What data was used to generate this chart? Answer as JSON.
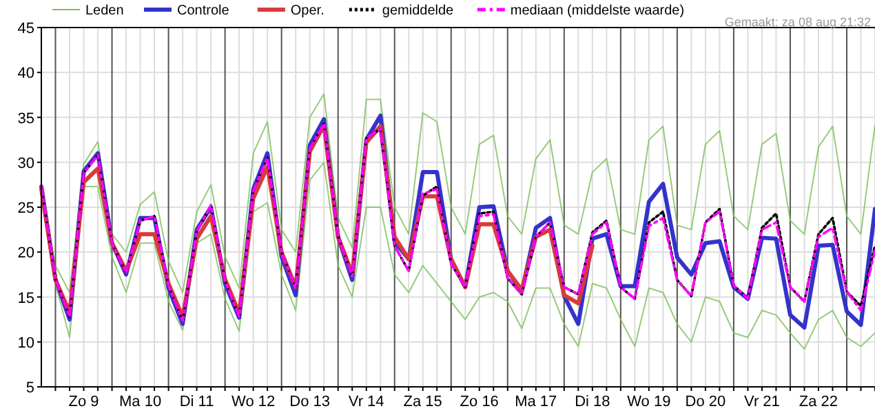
{
  "chart_data": {
    "type": "line",
    "annotations": [
      "Gemaakt: za 08 aug 21:32"
    ],
    "categories": [
      null,
      null,
      null,
      "Zo 9",
      null,
      null,
      null,
      "Ma 10",
      null,
      null,
      null,
      "Di 11",
      null,
      null,
      null,
      "Wo 12",
      null,
      null,
      null,
      "Do 13",
      null,
      null,
      null,
      "Vr 14",
      null,
      null,
      null,
      "Za 15",
      null,
      null,
      null,
      "Zo 16",
      null,
      null,
      null,
      "Ma 17",
      null,
      null,
      null,
      "Di 18",
      null,
      null,
      null,
      "Wo 19",
      null,
      null,
      null,
      "Do 20",
      null,
      null,
      null,
      "Vr 21",
      null,
      null,
      null,
      "Za 22",
      null,
      null,
      null,
      null
    ],
    "ylim": [
      5,
      45
    ],
    "yticks": [
      5,
      10,
      15,
      20,
      25,
      30,
      35,
      40,
      45
    ],
    "grid": true,
    "legend": "top",
    "series": [
      {
        "name": "Leden",
        "color": "#7cbf5a",
        "values": [
          null,
          18.5,
          15.5,
          29.8,
          32.3,
          22,
          20,
          25.3,
          26.7,
          19,
          15.5,
          24.5,
          27.5,
          19.5,
          16,
          31,
          34.5,
          22.5,
          20,
          35,
          37.6,
          23.8,
          20.5,
          37,
          37,
          25,
          22,
          35.5,
          34.5,
          25,
          22,
          32,
          33,
          24,
          22,
          30.4,
          32.5,
          23,
          22,
          28.9,
          30.4,
          22.5,
          22,
          32.5,
          34,
          23,
          22.5,
          32,
          33.5,
          24,
          22.5,
          32,
          33.2,
          23.5,
          22,
          31.7,
          34,
          24,
          22,
          34.2
        ]
      },
      {
        "color": "#7cbf5a",
        "values": [
          null,
          16.5,
          10.5,
          27.3,
          27.3,
          19.5,
          15.5,
          21,
          21,
          14.5,
          11.3,
          21,
          22,
          14.8,
          11.2,
          24.5,
          25.5,
          17.5,
          13.5,
          28,
          30,
          18.5,
          15,
          25,
          25,
          17.5,
          15.5,
          18.5,
          16.5,
          14.5,
          12.5,
          15,
          15.5,
          14.5,
          11.5,
          16,
          16,
          12,
          9.5,
          16.5,
          16,
          12.5,
          9.5,
          16,
          15.5,
          12,
          10,
          15,
          14.5,
          11,
          10.5,
          13.5,
          13,
          11,
          9.2,
          12.5,
          13.5,
          10.5,
          9.5,
          11
        ]
      },
      {
        "name": "Controle",
        "color": "#3333cc",
        "values": [
          27.3,
          17,
          12.5,
          29,
          31,
          21,
          17.5,
          23.8,
          23.8,
          16,
          12,
          22.5,
          25,
          16.5,
          12.7,
          27,
          31,
          19.5,
          15.2,
          31.9,
          34.8,
          21.7,
          16.9,
          32.5,
          35.2,
          21.2,
          19.2,
          28.9,
          28.9,
          19.2,
          16.1,
          25,
          25.1,
          17.9,
          15.6,
          22.7,
          23.8,
          15.1,
          12,
          21.5,
          22,
          16.2,
          16.2,
          25.6,
          27.6,
          19.4,
          17.5,
          21,
          21.2,
          16.1,
          14.8,
          21.6,
          21.5,
          13,
          11.6,
          20.7,
          20.8,
          13.4,
          11.9,
          24.8
        ]
      },
      {
        "name": "Oper.",
        "color": "#d93a3a",
        "values": [
          27,
          16.9,
          13.3,
          27.8,
          29.3,
          21,
          17.9,
          22,
          22,
          16.5,
          12.8,
          21.5,
          24,
          17,
          13.2,
          26,
          29.5,
          20,
          16.1,
          31.2,
          34.1,
          21.7,
          17.6,
          32.2,
          34,
          21.7,
          19.2,
          26.2,
          26.2,
          19.2,
          16.1,
          23.1,
          23.1,
          17.9,
          15.8,
          21.7,
          22.5,
          15.2,
          14.3,
          20.7,
          null,
          null,
          null,
          null,
          null,
          null,
          null,
          null,
          null,
          null,
          null,
          null,
          null,
          null,
          null,
          null,
          null,
          null,
          null,
          null
        ]
      },
      {
        "name": "gemiddelde",
        "color": "#000000",
        "line_style": "dotted",
        "values": [
          27.3,
          17,
          12.8,
          28.8,
          30.8,
          21,
          17.7,
          23.5,
          24,
          16.3,
          12.3,
          22.3,
          25.2,
          16.8,
          12.8,
          26.8,
          30.5,
          20,
          16,
          31.5,
          34.3,
          21.8,
          17.3,
          32.7,
          33.7,
          20.7,
          17.9,
          26.3,
          27.3,
          18.7,
          16.1,
          24.3,
          24.5,
          17.1,
          15.3,
          21.7,
          23.3,
          16.1,
          15.3,
          22.2,
          23.5,
          16.1,
          14.8,
          23.3,
          24.5,
          16.9,
          15.1,
          23.3,
          24.8,
          16.3,
          14.8,
          22.7,
          24.3,
          16.1,
          14.5,
          22,
          23.8,
          15.6,
          14,
          20.7
        ]
      },
      {
        "name": "mediaan (middelste waarde)",
        "color": "#ff00ff",
        "line_style": "dashed",
        "values": [
          27.3,
          17,
          12.8,
          28.8,
          30.8,
          21,
          17.7,
          23.5,
          24,
          16.3,
          12.3,
          22.3,
          25.2,
          16.8,
          12.8,
          26.8,
          30.5,
          20,
          16,
          31.5,
          34.3,
          21.8,
          17.3,
          32.7,
          33.7,
          20.7,
          17.9,
          26.5,
          27,
          18.7,
          16.1,
          24,
          24.2,
          17.1,
          15.3,
          21.7,
          23.3,
          16.1,
          15.3,
          22,
          23.3,
          16.1,
          14.8,
          22.9,
          23.8,
          16.9,
          15.1,
          23.3,
          24.5,
          16.3,
          14.8,
          22.5,
          23.3,
          16.1,
          14.5,
          21.7,
          22.7,
          15.6,
          13.5,
          20.2
        ]
      }
    ]
  }
}
